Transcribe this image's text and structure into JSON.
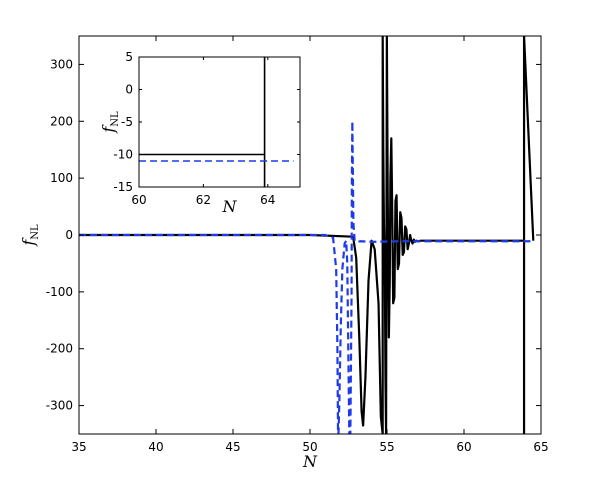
{
  "chart_data": [
    {
      "type": "line",
      "role": "main",
      "xlabel": "N",
      "ylabel": {
        "base": "f",
        "sub": "NL"
      },
      "xlim": [
        35,
        65
      ],
      "ylim": [
        -350,
        350
      ],
      "xticks": [
        35,
        40,
        45,
        50,
        55,
        60,
        65
      ],
      "yticks": [
        -300,
        -200,
        -100,
        0,
        100,
        200,
        300
      ],
      "grid": false,
      "series": [
        {
          "style": "solid",
          "color": "#000000",
          "x": [
            35,
            50,
            52.8,
            53.0,
            53.2,
            53.35,
            53.45,
            53.6,
            53.8,
            54.0,
            54.2,
            54.45,
            54.6,
            54.72,
            54.72,
            54.76,
            54.8,
            54.86,
            54.9,
            54.94,
            54.99,
            54.99,
            55.05,
            55.12,
            55.18,
            55.22,
            55.28,
            55.34,
            55.4,
            55.48,
            55.55,
            55.62,
            55.7,
            55.78,
            55.86,
            55.94,
            56.02,
            56.1,
            56.18,
            56.26,
            56.34,
            56.42,
            56.5,
            56.58,
            56.66,
            56.74,
            56.82,
            56.9,
            57.0,
            57.2,
            57.5,
            58,
            60,
            63.9,
            63.9,
            63.9,
            64.5
          ],
          "y": [
            0,
            0,
            -3,
            -40,
            -180,
            -310,
            -335,
            -250,
            -80,
            -10,
            -25,
            -120,
            -320,
            -350,
            350,
            150,
            20,
            -60,
            -250,
            -350,
            350,
            350,
            60,
            -180,
            -80,
            100,
            170,
            40,
            -120,
            -110,
            60,
            70,
            -60,
            -50,
            40,
            30,
            -35,
            -30,
            15,
            10,
            -25,
            -15,
            0,
            -10,
            -15,
            -8,
            -12,
            -10,
            -11,
            -10,
            -10,
            -10,
            -10,
            -10,
            -350,
            350,
            -10
          ]
        },
        {
          "style": "dashed",
          "color": "#1f3be8",
          "x": [
            35,
            51.0,
            51.5,
            51.7,
            51.78,
            51.82,
            51.85,
            51.9,
            52.0,
            52.1,
            52.25,
            52.35,
            52.42,
            52.5,
            52.55,
            52.62,
            52.7,
            52.72,
            52.75,
            52.78,
            52.82,
            52.9,
            53.0,
            53.3,
            54,
            56,
            60,
            64.5
          ],
          "y": [
            0,
            0,
            -5,
            -60,
            -200,
            -350,
            -350,
            -300,
            -160,
            -60,
            -15,
            -10,
            -50,
            -230,
            -350,
            -350,
            -100,
            100,
            200,
            120,
            20,
            -10,
            -12,
            -11,
            -12,
            -11,
            -11,
            -11
          ]
        }
      ]
    },
    {
      "type": "line",
      "role": "inset",
      "xlabel": "N",
      "ylabel": {
        "base": "f",
        "sub": "NL"
      },
      "xlim": [
        60,
        65
      ],
      "ylim": [
        -15,
        5
      ],
      "xticks": [
        60,
        62,
        64
      ],
      "yticks": [
        -15,
        -10,
        -5,
        0,
        5
      ],
      "grid": false,
      "series": [
        {
          "style": "solid",
          "color": "#000000",
          "x": [
            60,
            63.9,
            63.9,
            63.9
          ],
          "y": [
            -10,
            -10,
            -15,
            5
          ]
        },
        {
          "style": "dashed",
          "color": "#1f3be8",
          "x": [
            60,
            64.8
          ],
          "y": [
            -11,
            -11
          ]
        }
      ]
    }
  ]
}
